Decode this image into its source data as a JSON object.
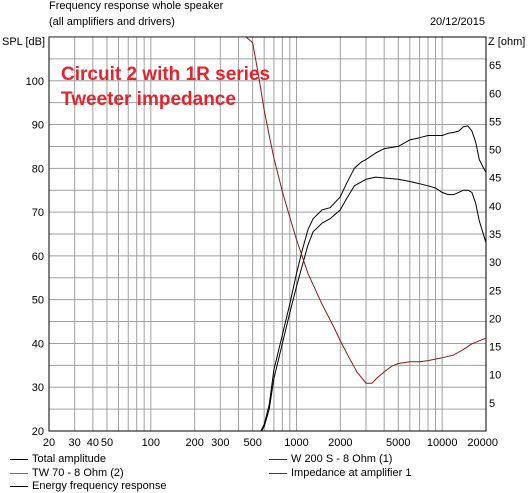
{
  "header": {
    "title": "Frequency response whole speaker",
    "subtitle": "(all amplifiers and drivers)",
    "date": "20/12/2015"
  },
  "annotation": {
    "line1": "Circuit 2 with 1R series",
    "line2": "Tweeter impedance"
  },
  "colors": {
    "total": "#000000",
    "woofer": "#2020c0",
    "tweeter": "#22aa22",
    "energy": "#000000",
    "impedance": "#8b1a1a",
    "grid": "#a0a0a0",
    "annotation": "#e8222b"
  },
  "chart_data": {
    "type": "line",
    "title": "Frequency response whole speaker",
    "x_scale": "log",
    "xlim": [
      20,
      20000
    ],
    "ylim_left": [
      20,
      110
    ],
    "ylim_right": [
      0,
      70
    ],
    "ylabel_left": "SPL [dB]",
    "ylabel_right": "Z [ohm]",
    "x_ticks": [
      20,
      30,
      40,
      50,
      100,
      200,
      300,
      500,
      1000,
      2000,
      5000,
      10000,
      20000
    ],
    "y_ticks_left": [
      20,
      30,
      40,
      50,
      60,
      70,
      80,
      90,
      100
    ],
    "y_ticks_right": [
      5,
      10,
      15,
      20,
      25,
      30,
      35,
      40,
      45,
      50,
      55,
      60,
      65
    ],
    "grid": true,
    "legend_position": "bottom",
    "series": [
      {
        "name": "Total amplitude",
        "axis": "left",
        "color_key": "total",
        "x": [
          500,
          550,
          600,
          650,
          700,
          800,
          900,
          1000,
          1100,
          1200,
          1300,
          1500,
          1700,
          2000,
          2200,
          2500,
          2800,
          3000,
          3500,
          4000,
          5000,
          6000,
          7000,
          8000,
          9000,
          10000,
          11000,
          12000,
          13000,
          14000,
          15000,
          16000,
          17000,
          18000,
          20000
        ],
        "y": [
          18,
          19,
          21.5,
          26,
          34,
          42,
          49,
          56,
          61.5,
          66,
          68.5,
          70.5,
          71,
          73.5,
          76.5,
          80,
          81.5,
          82,
          83.5,
          84.5,
          85,
          86.5,
          87,
          87.5,
          87.5,
          87.5,
          88,
          88.2,
          88.5,
          89.5,
          89.7,
          88.5,
          86,
          82,
          79
        ]
      },
      {
        "name": "Energy frequency response",
        "axis": "left",
        "color_key": "energy",
        "x": [
          500,
          550,
          600,
          650,
          700,
          800,
          900,
          1000,
          1100,
          1200,
          1300,
          1500,
          1700,
          2000,
          2200,
          2500,
          3000,
          3500,
          4000,
          5000,
          6000,
          7000,
          8000,
          9000,
          10000,
          11000,
          12000,
          13000,
          14000,
          15000,
          16000,
          17000,
          18000,
          20000
        ],
        "y": [
          18,
          19,
          21,
          25,
          32,
          40,
          47,
          53,
          58,
          62.5,
          65.5,
          67.5,
          68.5,
          70.5,
          73,
          76,
          77.5,
          78,
          77.8,
          77.5,
          77,
          76.5,
          76,
          75.5,
          74.5,
          74,
          74,
          74.5,
          75,
          75,
          74.5,
          72,
          68,
          63
        ]
      },
      {
        "name": "Impedance at amplifier 1",
        "axis": "right",
        "color_key": "impedance",
        "x": [
          20,
          30,
          50,
          100,
          200,
          300,
          450,
          500,
          550,
          600,
          650,
          700,
          800,
          900,
          1000,
          1200,
          1500,
          1800,
          2000,
          2300,
          2600,
          3000,
          3300,
          3600,
          4000,
          4500,
          5000,
          6000,
          7000,
          8000,
          10000,
          12000,
          14000,
          16000,
          20000
        ],
        "y": [
          70,
          70,
          70,
          70,
          70,
          70,
          70,
          69,
          63,
          57,
          52.5,
          48.5,
          42.5,
          38,
          34,
          28,
          22.5,
          18.5,
          16,
          13,
          10.5,
          8.5,
          8.5,
          9.5,
          10.5,
          11.5,
          12,
          12.3,
          12.3,
          12.5,
          13,
          13.5,
          14.5,
          15.5,
          16.5
        ]
      },
      {
        "name": "W 200 S - 8 Ohm (1)",
        "axis": "left",
        "color_key": "woofer",
        "x": [],
        "y": []
      },
      {
        "name": "TW 70 - 8 Ohm (2)",
        "axis": "left",
        "color_key": "tweeter",
        "x": [],
        "y": []
      }
    ]
  },
  "legend": {
    "total": "Total amplitude",
    "tweeter": "TW 70 - 8 Ohm (2)",
    "energy": "Energy frequency response",
    "woofer": "W 200 S - 8 Ohm (1)",
    "impedance": "Impedance at amplifier 1"
  }
}
